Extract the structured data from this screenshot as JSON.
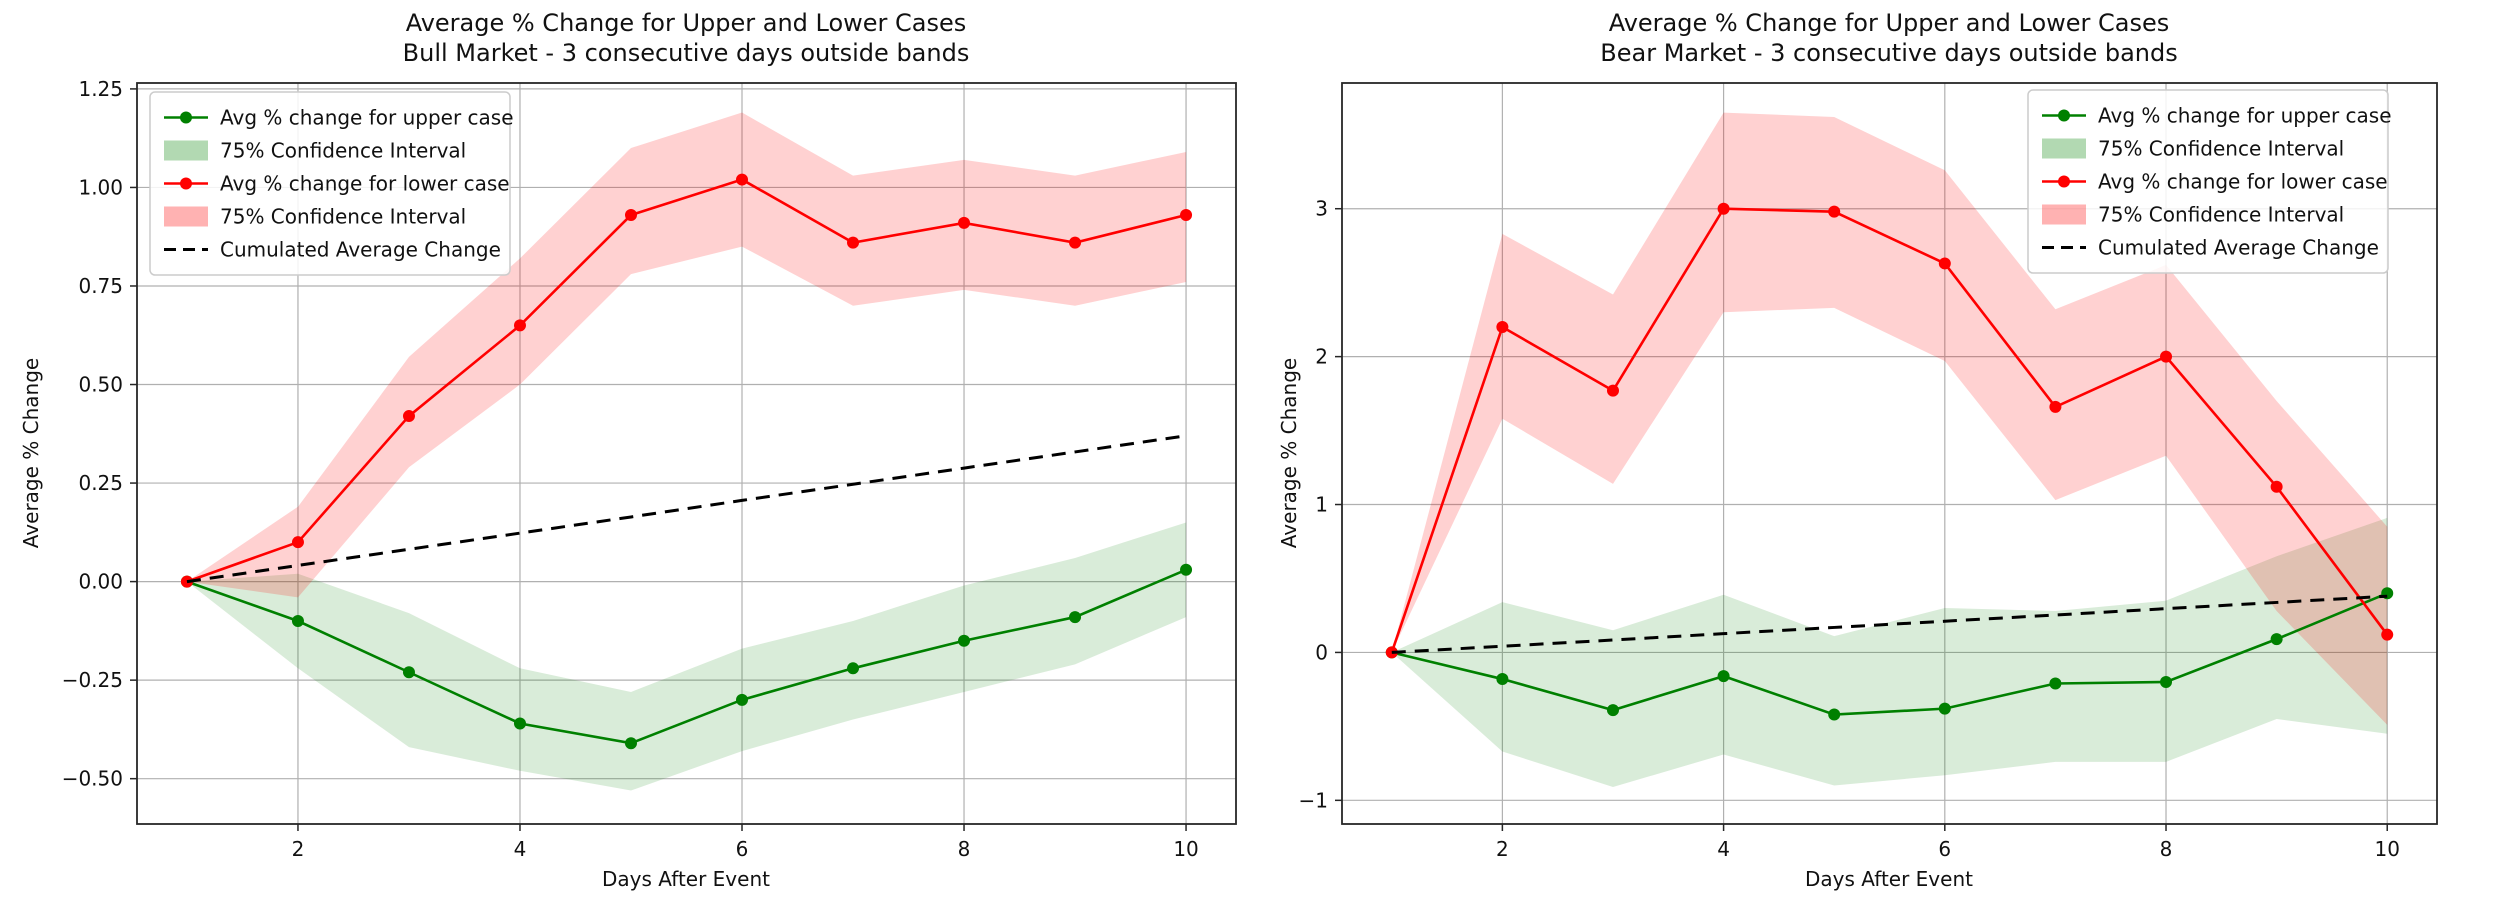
{
  "figure": {
    "background": "#ffffff",
    "grid": true,
    "legend_entries_per_chart": 5
  },
  "chart_data": [
    {
      "type": "line",
      "title": "Average % Change for Upper and Lower Cases",
      "subtitle": "Bull Market - 3 consecutive days outside bands",
      "xlabel": "Days After Event",
      "ylabel": "Average % Change",
      "legend": [
        "Avg % change for upper case",
        "75% Confidence Interval",
        "Avg % change for lower case",
        "75% Confidence Interval",
        "Cumulated Average Change"
      ],
      "legend_position": "upper-left",
      "x": [
        1,
        2,
        3,
        4,
        5,
        6,
        7,
        8,
        9,
        10
      ],
      "xlim": [
        0.55,
        10.45
      ],
      "ylim": [
        -0.615,
        1.265
      ],
      "xtick_values": [
        2,
        4,
        6,
        8,
        10
      ],
      "xtick_labels": [
        "2",
        "4",
        "6",
        "8",
        "10"
      ],
      "ytick_values": [
        1.25,
        1.0,
        0.75,
        0.5,
        0.25,
        0.0,
        -0.25,
        -0.5
      ],
      "ytick_labels": [
        "1.25",
        "1.00",
        "0.75",
        "0.50",
        "0.25",
        "0.00",
        "−0.25",
        "−0.50"
      ],
      "series": [
        {
          "name": "Avg % change for upper case",
          "values": [
            0.0,
            -0.1,
            -0.23,
            -0.36,
            -0.41,
            -0.3,
            -0.22,
            -0.15,
            -0.09,
            0.03
          ]
        },
        {
          "name": "Avg % change for lower case",
          "values": [
            0.0,
            0.1,
            0.42,
            0.65,
            0.93,
            1.02,
            0.86,
            0.91,
            0.86,
            0.93
          ]
        },
        {
          "name": "Cumulated Average Change",
          "values": [
            0.0,
            0.041,
            0.082,
            0.123,
            0.164,
            0.206,
            0.247,
            0.288,
            0.329,
            0.37
          ]
        }
      ],
      "upper_ci_low": [
        0.0,
        -0.22,
        -0.42,
        -0.48,
        -0.53,
        -0.43,
        -0.35,
        -0.28,
        -0.21,
        -0.09
      ],
      "upper_ci_high": [
        0.0,
        0.02,
        -0.08,
        -0.22,
        -0.28,
        -0.17,
        -0.1,
        -0.01,
        0.06,
        0.15
      ],
      "lower_ci_low": [
        0.0,
        -0.04,
        0.29,
        0.5,
        0.78,
        0.85,
        0.7,
        0.74,
        0.7,
        0.76
      ],
      "lower_ci_high": [
        0.0,
        0.19,
        0.57,
        0.82,
        1.1,
        1.19,
        1.03,
        1.07,
        1.03,
        1.09
      ],
      "colors": {
        "upper_line": "#008000",
        "lower_line": "#ff0000",
        "upper_band": "#008000",
        "lower_band": "#ff0000",
        "cumulated_line": "#000000",
        "grid": "#b0b0b0",
        "spine": "#262626"
      }
    },
    {
      "type": "line",
      "title": "Average % Change for Upper and Lower Cases",
      "subtitle": "Bear Market - 3 consecutive days outside bands",
      "xlabel": "Days After Event",
      "ylabel": "Average % Change",
      "legend": [
        "Avg % change for upper case",
        "75% Confidence Interval",
        "Avg % change for lower case",
        "75% Confidence Interval",
        "Cumulated Average Change"
      ],
      "legend_position": "upper-right",
      "x": [
        1,
        2,
        3,
        4,
        5,
        6,
        7,
        8,
        9,
        10
      ],
      "xlim": [
        0.55,
        10.45
      ],
      "ylim": [
        -1.16,
        3.85
      ],
      "xtick_values": [
        2,
        4,
        6,
        8,
        10
      ],
      "xtick_labels": [
        "2",
        "4",
        "6",
        "8",
        "10"
      ],
      "ytick_values": [
        3,
        2,
        1,
        0,
        -1
      ],
      "ytick_labels": [
        "3",
        "2",
        "1",
        "0",
        "−1"
      ],
      "series": [
        {
          "name": "Avg % change for upper case",
          "values": [
            0.0,
            -0.18,
            -0.39,
            -0.16,
            -0.42,
            -0.38,
            -0.21,
            -0.2,
            0.09,
            0.4
          ]
        },
        {
          "name": "Avg % change for lower case",
          "values": [
            0.0,
            2.2,
            1.77,
            3.0,
            2.98,
            2.63,
            1.66,
            2.0,
            1.12,
            0.12
          ]
        },
        {
          "name": "Cumulated Average Change",
          "values": [
            0.0,
            0.042,
            0.084,
            0.127,
            0.169,
            0.211,
            0.253,
            0.296,
            0.338,
            0.38
          ]
        }
      ],
      "upper_ci_low": [
        0.0,
        -0.67,
        -0.91,
        -0.69,
        -0.9,
        -0.83,
        -0.74,
        -0.74,
        -0.45,
        -0.55
      ],
      "upper_ci_high": [
        0.0,
        0.34,
        0.15,
        0.39,
        0.11,
        0.3,
        0.28,
        0.35,
        0.65,
        0.91
      ],
      "lower_ci_low": [
        0.0,
        1.58,
        1.14,
        2.3,
        2.33,
        1.97,
        1.03,
        1.33,
        0.28,
        -0.49
      ],
      "lower_ci_high": [
        0.0,
        2.83,
        2.42,
        3.65,
        3.62,
        3.26,
        2.32,
        2.62,
        1.7,
        0.85
      ],
      "colors": {
        "upper_line": "#008000",
        "lower_line": "#ff0000",
        "upper_band": "#008000",
        "lower_band": "#ff0000",
        "cumulated_line": "#000000",
        "grid": "#b0b0b0",
        "spine": "#262626"
      }
    }
  ]
}
